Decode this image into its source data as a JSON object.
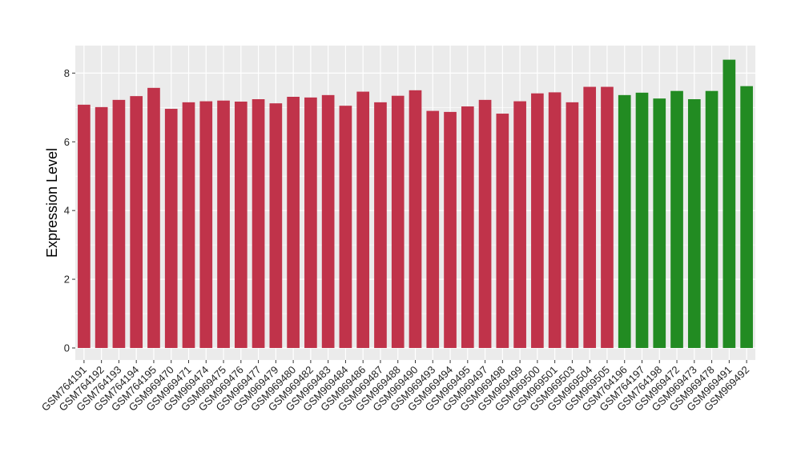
{
  "chart_data": {
    "type": "bar",
    "title": "",
    "xlabel": "",
    "ylabel": "Expression Level",
    "ylim": [
      -0.35,
      8.8
    ],
    "yticks": [
      0,
      2,
      4,
      6,
      8
    ],
    "grid": true,
    "legend": "none",
    "colors": {
      "group_1": "#c0334a",
      "group_2": "#228b22",
      "panel_bg": "#ebebeb",
      "grid": "#ffffff"
    },
    "categories": [
      "GSM764191",
      "GSM764192",
      "GSM764193",
      "GSM764194",
      "GSM764195",
      "GSM969470",
      "GSM969471",
      "GSM969474",
      "GSM969475",
      "GSM969476",
      "GSM969477",
      "GSM969479",
      "GSM969480",
      "GSM969482",
      "GSM969483",
      "GSM969484",
      "GSM969486",
      "GSM969487",
      "GSM969488",
      "GSM969490",
      "GSM969493",
      "GSM969494",
      "GSM969495",
      "GSM969497",
      "GSM969498",
      "GSM969499",
      "GSM969500",
      "GSM969501",
      "GSM969503",
      "GSM969504",
      "GSM969505",
      "GSM764196",
      "GSM764197",
      "GSM764198",
      "GSM969472",
      "GSM969473",
      "GSM969478",
      "GSM969491",
      "GSM969492"
    ],
    "values": [
      7.08,
      7.01,
      7.22,
      7.33,
      7.57,
      6.96,
      7.15,
      7.18,
      7.2,
      7.17,
      7.24,
      7.12,
      7.31,
      7.29,
      7.36,
      7.05,
      7.46,
      7.15,
      7.34,
      7.5,
      6.9,
      6.87,
      7.03,
      7.22,
      6.82,
      7.18,
      7.41,
      7.44,
      7.15,
      7.6,
      7.6,
      7.36,
      7.43,
      7.26,
      7.48,
      7.24,
      7.48,
      8.39,
      7.62
    ],
    "groups": [
      "group_1",
      "group_1",
      "group_1",
      "group_1",
      "group_1",
      "group_1",
      "group_1",
      "group_1",
      "group_1",
      "group_1",
      "group_1",
      "group_1",
      "group_1",
      "group_1",
      "group_1",
      "group_1",
      "group_1",
      "group_1",
      "group_1",
      "group_1",
      "group_1",
      "group_1",
      "group_1",
      "group_1",
      "group_1",
      "group_1",
      "group_1",
      "group_1",
      "group_1",
      "group_1",
      "group_1",
      "group_2",
      "group_2",
      "group_2",
      "group_2",
      "group_2",
      "group_2",
      "group_2",
      "group_2"
    ]
  }
}
